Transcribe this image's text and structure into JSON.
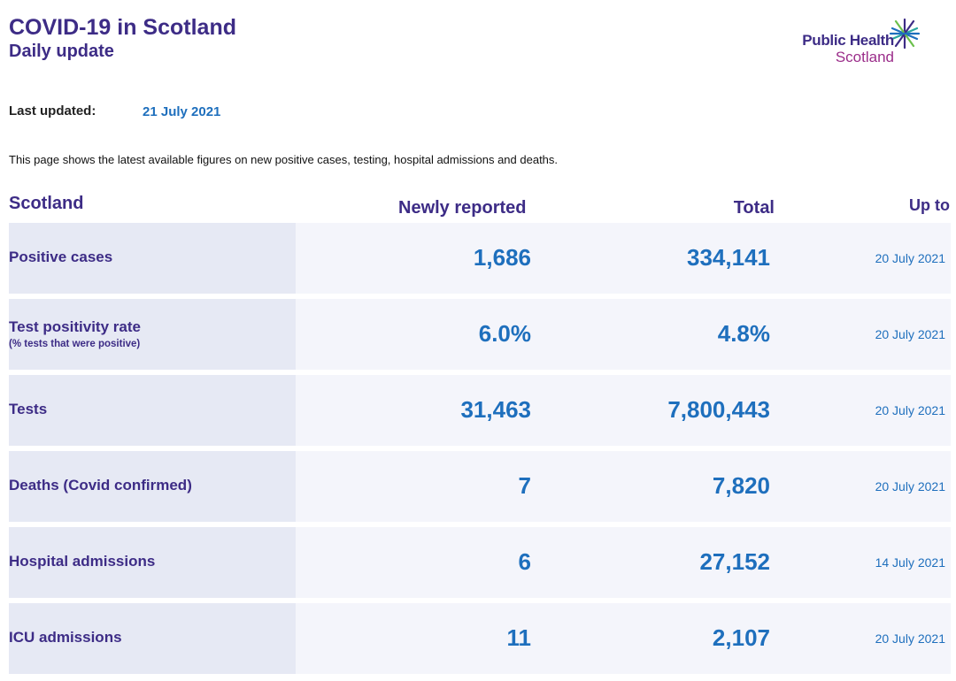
{
  "header": {
    "title": "COVID-19 in Scotland",
    "subtitle": "Daily update",
    "logo_line1": "Public Health",
    "logo_line2": "Scotland",
    "logo_icon": "star-burst-icon"
  },
  "updated": {
    "label": "Last updated:",
    "value": "21 July 2021"
  },
  "intro": "This page shows the latest available figures on new positive cases, testing, hospital admissions and deaths.",
  "table": {
    "headers": {
      "region": "Scotland",
      "new": "Newly reported",
      "total": "Total",
      "upto": "Up to"
    },
    "rows": [
      {
        "name": "Positive cases",
        "sub": "",
        "new": "1,686",
        "total": "334,141",
        "date": "20 July 2021"
      },
      {
        "name": "Test positivity rate",
        "sub": "(% tests that were positive)",
        "new": "6.0%",
        "total": "4.8%",
        "date": "20 July 2021"
      },
      {
        "name": "Tests",
        "sub": "",
        "new": "31,463",
        "total": "7,800,443",
        "date": "20 July 2021"
      },
      {
        "name": "Deaths (Covid confirmed)",
        "sub": "",
        "new": "7",
        "total": "7,820",
        "date": "20 July 2021"
      },
      {
        "name": "Hospital admissions",
        "sub": "",
        "new": "6",
        "total": "27,152",
        "date": "14 July 2021"
      },
      {
        "name": "ICU admissions",
        "sub": "",
        "new": "11",
        "total": "2,107",
        "date": "20 July 2021"
      }
    ]
  },
  "colors": {
    "heading": "#3d2c86",
    "value": "#1e6fbd",
    "logo_accent": "#9b2d8a",
    "row_bg": "#f4f5fb",
    "label_bg": "#e6e9f4"
  }
}
